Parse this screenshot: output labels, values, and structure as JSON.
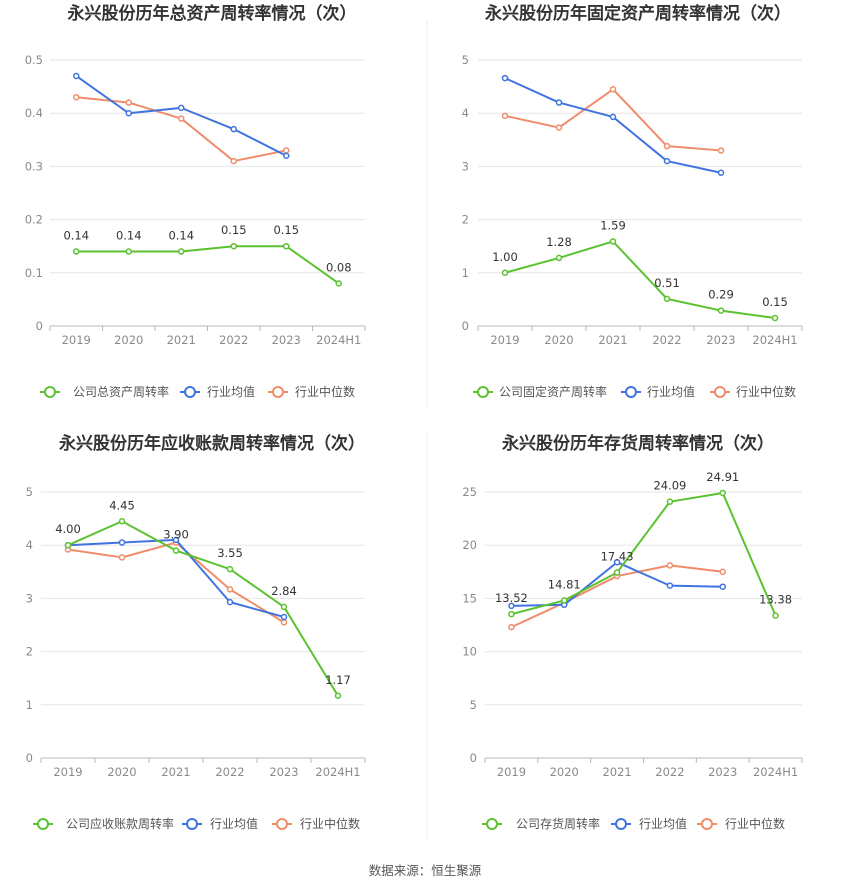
{
  "source_text": "数据来源：恒生聚源",
  "colors": {
    "company": "#5bc230",
    "avg": "#3f74e0",
    "median": "#f08c6a",
    "grid": "#e6e6e6",
    "axis": "#b8b8b8"
  },
  "chart_data": [
    {
      "type": "line",
      "title": "永兴股份历年总资产周转率情况（次）",
      "categories": [
        "2019",
        "2020",
        "2021",
        "2022",
        "2023",
        "2024H1"
      ],
      "ylim": [
        0,
        0.5
      ],
      "yticks": [
        "0",
        "0.1",
        "0.2",
        "0.3",
        "0.4",
        "0.5"
      ],
      "grid": true,
      "legend_position": "bottom",
      "series": [
        {
          "key": "company",
          "name": "公司总资产周转率",
          "values": [
            0.14,
            0.14,
            0.14,
            0.15,
            0.15,
            0.08
          ],
          "labels": [
            "0.14",
            "0.14",
            "0.14",
            "0.15",
            "0.15",
            "0.08"
          ]
        },
        {
          "key": "avg",
          "name": "行业均值",
          "values": [
            0.47,
            0.4,
            0.41,
            0.37,
            0.32,
            null
          ]
        },
        {
          "key": "median",
          "name": "行业中位数",
          "values": [
            0.43,
            0.42,
            0.39,
            0.31,
            0.33,
            null
          ]
        }
      ]
    },
    {
      "type": "line",
      "title": "永兴股份历年固定资产周转率情况（次）",
      "categories": [
        "2019",
        "2020",
        "2021",
        "2022",
        "2023",
        "2024H1"
      ],
      "ylim": [
        0,
        5
      ],
      "yticks": [
        "0",
        "1",
        "2",
        "3",
        "4",
        "5"
      ],
      "grid": true,
      "legend_position": "bottom",
      "series": [
        {
          "key": "company",
          "name": "公司固定资产周转率",
          "values": [
            1.0,
            1.28,
            1.59,
            0.51,
            0.29,
            0.15
          ],
          "labels": [
            "1.00",
            "1.28",
            "1.59",
            "0.51",
            "0.29",
            "0.15"
          ]
        },
        {
          "key": "avg",
          "name": "行业均值",
          "values": [
            4.66,
            4.2,
            3.93,
            3.1,
            2.88,
            null
          ]
        },
        {
          "key": "median",
          "name": "行业中位数",
          "values": [
            3.95,
            3.73,
            4.45,
            3.38,
            3.3,
            null
          ]
        }
      ]
    },
    {
      "type": "line",
      "title": "永兴股份历年应收账款周转率情况（次）",
      "categories": [
        "2019",
        "2020",
        "2021",
        "2022",
        "2023",
        "2024H1"
      ],
      "ylim": [
        0,
        5
      ],
      "yticks": [
        "0",
        "1",
        "2",
        "3",
        "4",
        "5"
      ],
      "grid": true,
      "legend_position": "bottom",
      "series": [
        {
          "key": "company",
          "name": "公司应收账款周转率",
          "values": [
            4.0,
            4.45,
            3.9,
            3.55,
            2.84,
            1.17
          ],
          "labels": [
            "4.00",
            "4.45",
            "3.90",
            "3.55",
            "2.84",
            "1.17"
          ]
        },
        {
          "key": "avg",
          "name": "行业均值",
          "values": [
            4.0,
            4.05,
            4.1,
            2.93,
            2.65,
            null
          ]
        },
        {
          "key": "median",
          "name": "行业中位数",
          "values": [
            3.92,
            3.77,
            4.05,
            3.17,
            2.55,
            null
          ]
        }
      ]
    },
    {
      "type": "line",
      "title": "永兴股份历年存货周转率情况（次）",
      "categories": [
        "2019",
        "2020",
        "2021",
        "2022",
        "2023",
        "2024H1"
      ],
      "ylim": [
        0,
        25
      ],
      "yticks": [
        "0",
        "5",
        "10",
        "15",
        "20",
        "25"
      ],
      "grid": true,
      "legend_position": "bottom",
      "series": [
        {
          "key": "company",
          "name": "公司存货周转率",
          "values": [
            13.52,
            14.81,
            17.43,
            24.09,
            24.91,
            13.38
          ],
          "labels": [
            "13.52",
            "14.81",
            "17.43",
            "24.09",
            "24.91",
            "13.38"
          ]
        },
        {
          "key": "avg",
          "name": "行业均值",
          "values": [
            14.3,
            14.4,
            18.4,
            16.2,
            16.1,
            null
          ]
        },
        {
          "key": "median",
          "name": "行业中位数",
          "values": [
            12.3,
            14.6,
            17.1,
            18.1,
            17.5,
            null
          ]
        }
      ]
    }
  ]
}
